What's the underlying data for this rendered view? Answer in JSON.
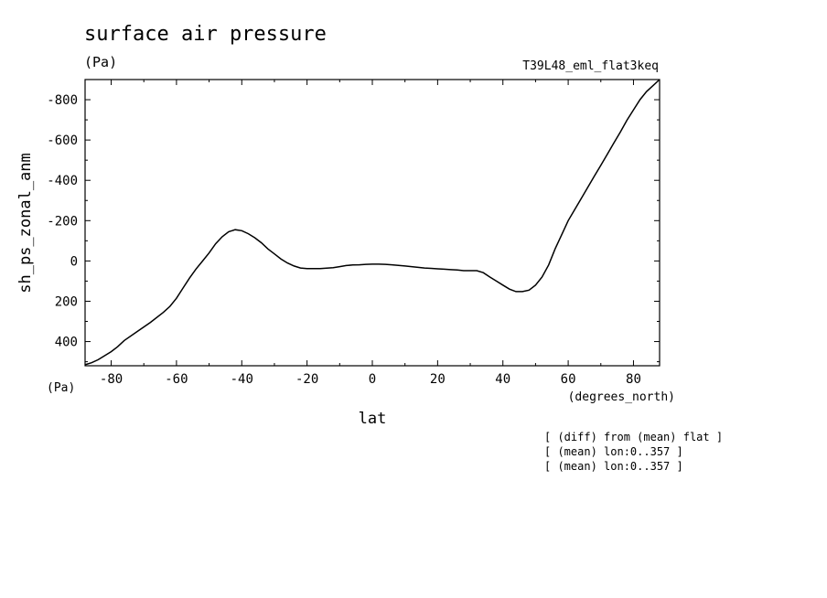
{
  "chart_data": {
    "type": "line",
    "title": "surface air pressure",
    "units_label": "(Pa)",
    "run_label": "T39L48_eml_flat3keq",
    "ylabel": "sh_ps_zonal_anm",
    "y_unit_corner": "(Pa)",
    "xlabel": "lat",
    "x_unit": "(degrees_north)",
    "xlim": [
      -88,
      88
    ],
    "ylim": [
      520,
      -900
    ],
    "y_inverted": true,
    "x_ticks": [
      -80,
      -60,
      -40,
      -20,
      0,
      20,
      40,
      60,
      80
    ],
    "x_tick_labels": [
      "-80",
      "-60",
      "-40",
      "-20",
      "0",
      "20",
      "40",
      "60",
      "80"
    ],
    "y_ticks": [
      -800,
      -600,
      -400,
      -200,
      0,
      200,
      400
    ],
    "y_tick_labels": [
      "-800",
      "-600",
      "-400",
      "-200",
      "0",
      "200",
      "400"
    ],
    "grid": false,
    "series": [
      {
        "x": [
          -88,
          -86,
          -84,
          -82,
          -80,
          -78,
          -76,
          -72,
          -68,
          -64,
          -62,
          -60,
          -58,
          -56,
          -54,
          -52,
          -50,
          -48,
          -46,
          -44,
          -42,
          -40,
          -38,
          -36,
          -34,
          -32,
          -30,
          -28,
          -26,
          -24,
          -22,
          -20,
          -18,
          -16,
          -14,
          -12,
          -10,
          -8,
          -6,
          -4,
          -2,
          0,
          2,
          4,
          6,
          8,
          10,
          12,
          14,
          16,
          18,
          20,
          22,
          24,
          26,
          28,
          30,
          32,
          34,
          36,
          38,
          40,
          42,
          44,
          46,
          48,
          50,
          52,
          54,
          56,
          58,
          60,
          62,
          64,
          66,
          68,
          70,
          72,
          74,
          76,
          78,
          80,
          82,
          84,
          86,
          88
        ],
        "y": [
          515,
          505,
          490,
          470,
          450,
          425,
          395,
          350,
          305,
          255,
          225,
          185,
          135,
          85,
          40,
          0,
          -40,
          -85,
          -120,
          -145,
          -155,
          -150,
          -135,
          -115,
          -90,
          -60,
          -35,
          -10,
          10,
          25,
          35,
          38,
          38,
          38,
          36,
          33,
          28,
          23,
          20,
          19,
          17,
          16,
          16,
          17,
          19,
          22,
          25,
          28,
          32,
          35,
          37,
          39,
          41,
          43,
          45,
          48,
          48,
          48,
          58,
          80,
          100,
          120,
          140,
          152,
          152,
          145,
          120,
          80,
          20,
          -60,
          -130,
          -200,
          -255,
          -310,
          -365,
          -420,
          -475,
          -530,
          -585,
          -640,
          -698,
          -750,
          -800,
          -840,
          -870,
          -900
        ]
      }
    ]
  },
  "footnotes": [
    "[ (diff) from (mean) flat ]",
    "[ (mean) lon:0..357 ]",
    "[ (mean) lon:0..357 ]"
  ]
}
